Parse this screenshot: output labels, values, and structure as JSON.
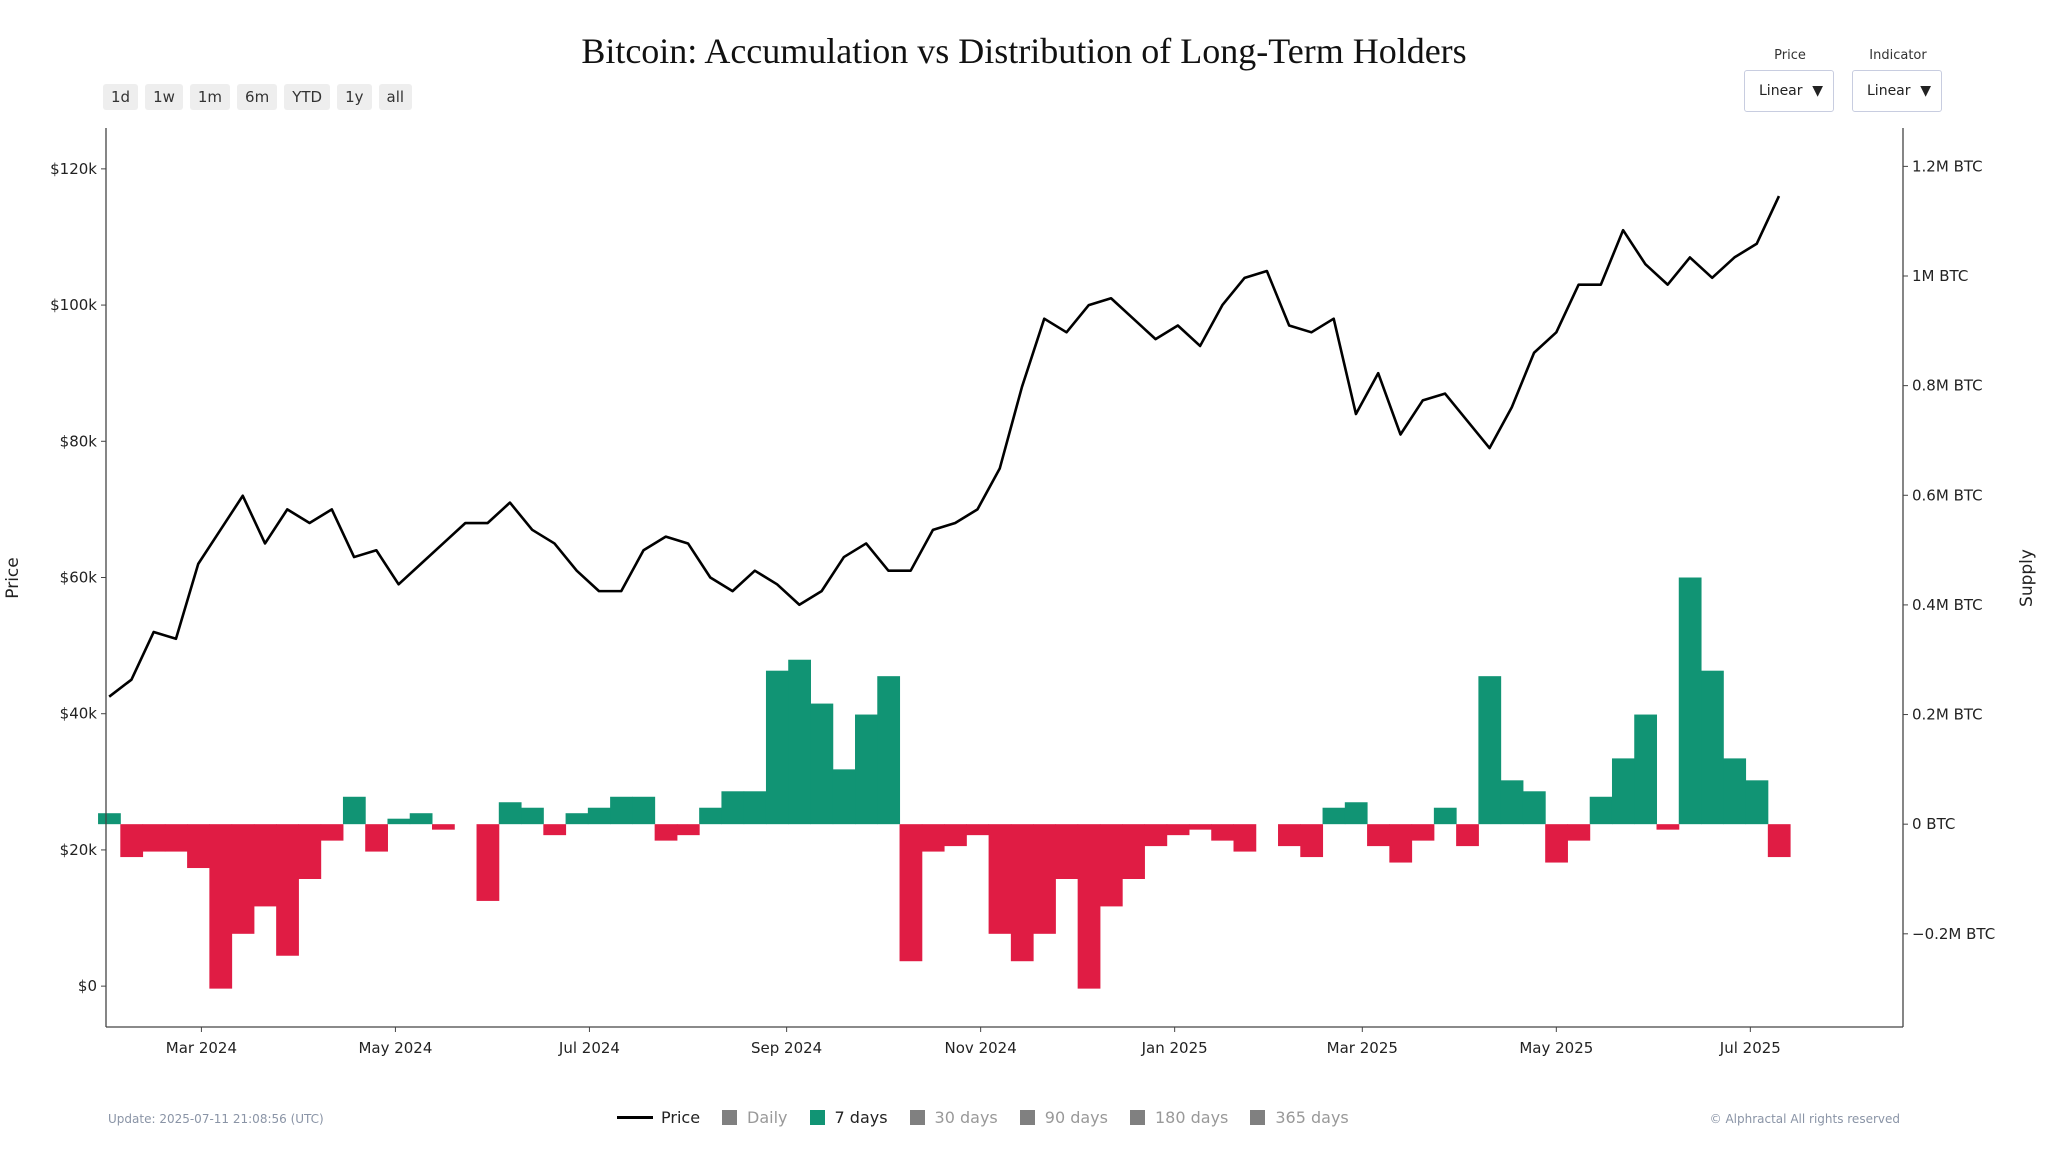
{
  "title": "Bitcoin: Accumulation vs Distribution of Long-Term Holders",
  "range_buttons": [
    "1d",
    "1w",
    "1m",
    "6m",
    "YTD",
    "1y",
    "all"
  ],
  "dropdowns": [
    {
      "label": "Price",
      "value": "Linear"
    },
    {
      "label": "Indicator",
      "value": "Linear"
    }
  ],
  "update_text": "Update: 2025-07-11 21:08:56 (UTC)",
  "copyright": "© Alphractal All rights reserved",
  "legend": [
    {
      "label": "Price",
      "type": "line",
      "color": "#000000",
      "active": true
    },
    {
      "label": "Daily",
      "type": "box",
      "color": "#808080",
      "active": false
    },
    {
      "label": "7 days",
      "type": "box",
      "color": "#119474",
      "active": true
    },
    {
      "label": "30 days",
      "type": "box",
      "color": "#808080",
      "active": false
    },
    {
      "label": "90 days",
      "type": "box",
      "color": "#808080",
      "active": false
    },
    {
      "label": "180 days",
      "type": "box",
      "color": "#808080",
      "active": false
    },
    {
      "label": "365 days",
      "type": "box",
      "color": "#808080",
      "active": false
    }
  ],
  "chart_data": {
    "type": "bar+line",
    "title": "Bitcoin: Accumulation vs Distribution of Long-Term Holders",
    "ylabel": "Price",
    "y2label": "Supply",
    "ylim": [
      -6000,
      126000
    ],
    "y2lim": [
      -0.37,
      1.27
    ],
    "xlim": [
      "2024-01-31",
      "2025-08-18"
    ],
    "x_ticks": [
      [
        "2024-03-01",
        "Mar 2024"
      ],
      [
        "2024-05-01",
        "May 2024"
      ],
      [
        "2024-07-01",
        "Jul 2024"
      ],
      [
        "2024-09-01",
        "Sep 2024"
      ],
      [
        "2024-11-01",
        "Nov 2024"
      ],
      [
        "2025-01-01",
        "Jan 2025"
      ],
      [
        "2025-03-01",
        "Mar 2025"
      ],
      [
        "2025-05-01",
        "May 2025"
      ],
      [
        "2025-07-01",
        "Jul 2025"
      ]
    ],
    "y_ticks": [
      [
        0,
        "$0"
      ],
      [
        20000,
        "$20k"
      ],
      [
        40000,
        "$40k"
      ],
      [
        60000,
        "$60k"
      ],
      [
        80000,
        "$80k"
      ],
      [
        100000,
        "$100k"
      ],
      [
        120000,
        "$120k"
      ]
    ],
    "y2_ticks": [
      [
        -0.2,
        "−0.2M BTC"
      ],
      [
        0,
        "0 BTC"
      ],
      [
        0.2,
        "0.2M BTC"
      ],
      [
        0.4,
        "0.4M BTC"
      ],
      [
        0.6,
        "0.6M BTC"
      ],
      [
        0.8,
        "0.8M BTC"
      ],
      [
        1.0,
        "1M BTC"
      ],
      [
        1.2,
        "1.2M BTC"
      ]
    ],
    "colors": {
      "positive": "#119474",
      "negative": "#e01c44",
      "price": "#000000"
    },
    "grid": false,
    "legend_position": "bottom",
    "series_price_name": "Price",
    "series_supply_name": "7 days",
    "points": [
      [
        "2024-02-01",
        42500,
        0.02
      ],
      [
        "2024-02-08",
        45000,
        -0.06
      ],
      [
        "2024-02-15",
        52000,
        -0.05
      ],
      [
        "2024-02-22",
        51000,
        -0.05
      ],
      [
        "2024-02-29",
        62000,
        -0.08
      ],
      [
        "2024-03-07",
        67000,
        -0.3
      ],
      [
        "2024-03-14",
        72000,
        -0.2
      ],
      [
        "2024-03-21",
        65000,
        -0.15
      ],
      [
        "2024-03-28",
        70000,
        -0.24
      ],
      [
        "2024-04-04",
        68000,
        -0.1
      ],
      [
        "2024-04-11",
        70000,
        -0.03
      ],
      [
        "2024-04-18",
        63000,
        0.05
      ],
      [
        "2024-04-25",
        64000,
        -0.05
      ],
      [
        "2024-05-02",
        59000,
        0.01
      ],
      [
        "2024-05-09",
        62000,
        0.02
      ],
      [
        "2024-05-16",
        65000,
        -0.01
      ],
      [
        "2024-05-23",
        68000,
        0.0
      ],
      [
        "2024-05-30",
        68000,
        -0.14
      ],
      [
        "2024-06-06",
        71000,
        0.04
      ],
      [
        "2024-06-13",
        67000,
        0.03
      ],
      [
        "2024-06-20",
        65000,
        -0.02
      ],
      [
        "2024-06-27",
        61000,
        0.02
      ],
      [
        "2024-07-04",
        58000,
        0.03
      ],
      [
        "2024-07-11",
        58000,
        0.05
      ],
      [
        "2024-07-18",
        64000,
        0.05
      ],
      [
        "2024-07-25",
        66000,
        -0.03
      ],
      [
        "2024-08-01",
        65000,
        -0.02
      ],
      [
        "2024-08-08",
        60000,
        0.03
      ],
      [
        "2024-08-15",
        58000,
        0.06
      ],
      [
        "2024-08-22",
        61000,
        0.06
      ],
      [
        "2024-08-29",
        59000,
        0.28
      ],
      [
        "2024-09-05",
        56000,
        0.3
      ],
      [
        "2024-09-12",
        58000,
        0.22
      ],
      [
        "2024-09-19",
        63000,
        0.1
      ],
      [
        "2024-09-26",
        65000,
        0.2
      ],
      [
        "2024-10-03",
        61000,
        0.27
      ],
      [
        "2024-10-10",
        61000,
        -0.25
      ],
      [
        "2024-10-17",
        67000,
        -0.05
      ],
      [
        "2024-10-24",
        68000,
        -0.04
      ],
      [
        "2024-10-31",
        70000,
        -0.02
      ],
      [
        "2024-11-07",
        76000,
        -0.2
      ],
      [
        "2024-11-14",
        88000,
        -0.25
      ],
      [
        "2024-11-21",
        98000,
        -0.2
      ],
      [
        "2024-11-28",
        96000,
        -0.1
      ],
      [
        "2024-12-05",
        100000,
        -0.3
      ],
      [
        "2024-12-12",
        101000,
        -0.15
      ],
      [
        "2024-12-19",
        98000,
        -0.1
      ],
      [
        "2024-12-26",
        95000,
        -0.04
      ],
      [
        "2025-01-02",
        97000,
        -0.02
      ],
      [
        "2025-01-09",
        94000,
        -0.01
      ],
      [
        "2025-01-16",
        100000,
        -0.03
      ],
      [
        "2025-01-23",
        104000,
        -0.05
      ],
      [
        "2025-01-30",
        105000,
        0.0
      ],
      [
        "2025-02-06",
        97000,
        -0.04
      ],
      [
        "2025-02-13",
        96000,
        -0.06
      ],
      [
        "2025-02-20",
        98000,
        0.03
      ],
      [
        "2025-02-27",
        84000,
        0.04
      ],
      [
        "2025-03-06",
        90000,
        -0.04
      ],
      [
        "2025-03-13",
        81000,
        -0.07
      ],
      [
        "2025-03-20",
        86000,
        -0.03
      ],
      [
        "2025-03-27",
        87000,
        0.03
      ],
      [
        "2025-04-03",
        83000,
        -0.04
      ],
      [
        "2025-04-10",
        79000,
        0.27
      ],
      [
        "2025-04-17",
        85000,
        0.08
      ],
      [
        "2025-04-24",
        93000,
        0.06
      ],
      [
        "2025-05-01",
        96000,
        -0.07
      ],
      [
        "2025-05-08",
        103000,
        -0.03
      ],
      [
        "2025-05-15",
        103000,
        0.05
      ],
      [
        "2025-05-22",
        111000,
        0.12
      ],
      [
        "2025-05-29",
        106000,
        0.2
      ],
      [
        "2025-06-05",
        103000,
        -0.01
      ],
      [
        "2025-06-12",
        107000,
        0.45
      ],
      [
        "2025-06-19",
        104000,
        0.28
      ],
      [
        "2025-06-26",
        107000,
        0.12
      ],
      [
        "2025-07-03",
        109000,
        0.08
      ],
      [
        "2025-07-10",
        116000,
        -0.06
      ]
    ]
  }
}
